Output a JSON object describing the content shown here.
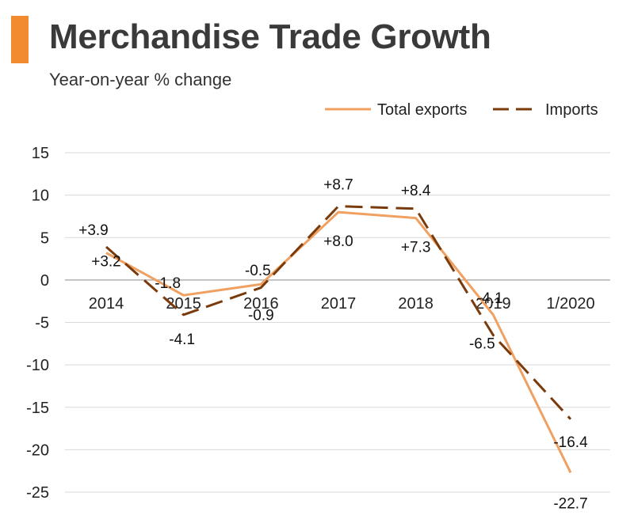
{
  "header": {
    "title": "Merchandise Trade Growth",
    "subtitle": "Year-on-year % change",
    "accent_color": "#f28a30"
  },
  "chart_data": {
    "type": "line",
    "categories": [
      "2014",
      "2015",
      "2016",
      "2017",
      "2018",
      "2019",
      "1/2020"
    ],
    "ylim": [
      -25,
      15
    ],
    "yticks": [
      "15",
      "10",
      "5",
      "0",
      "-5",
      "-10",
      "-15",
      "-20",
      "-25"
    ],
    "grid": true,
    "legend_position": "top-right",
    "series": [
      {
        "name": "Total exports",
        "color": "#f0a060",
        "style": "solid",
        "values": [
          3.2,
          -1.8,
          -0.5,
          8.0,
          7.3,
          -4.1,
          -22.7
        ],
        "labels": [
          "+3.2",
          "-1.8",
          "-0.5",
          "+8.0",
          "+7.3",
          "-4.1",
          "-22.7"
        ]
      },
      {
        "name": "Imports",
        "color": "#7a3b0c",
        "style": "dashed",
        "values": [
          3.9,
          -4.1,
          -0.9,
          8.7,
          8.4,
          -6.5,
          -16.4
        ],
        "labels": [
          "+3.9",
          "-4.1",
          "-0.9",
          "+8.7",
          "+8.4",
          "-6.5",
          "-16.4"
        ]
      }
    ]
  }
}
